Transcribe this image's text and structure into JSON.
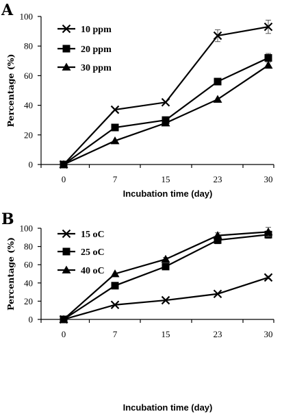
{
  "chart_data": [
    {
      "panel": "A",
      "type": "line",
      "categories": [
        "0",
        "7",
        "15",
        "23",
        "30"
      ],
      "xlabel": "Incubation time (day)",
      "ylabel": "Percentage (%)",
      "ylim": [
        0,
        100
      ],
      "yticks": [
        0,
        20,
        40,
        60,
        80,
        100
      ],
      "legend_position": "top-left",
      "series": [
        {
          "name": "10 ppm",
          "marker": "x",
          "values": [
            0,
            37,
            42,
            87,
            93
          ],
          "errors": [
            0,
            0,
            0,
            4,
            4.5
          ]
        },
        {
          "name": "20 ppm",
          "marker": "square",
          "values": [
            0,
            25,
            30,
            56,
            72
          ],
          "errors": [
            0,
            0,
            0,
            0,
            3
          ]
        },
        {
          "name": "30 ppm",
          "marker": "triangle",
          "values": [
            0,
            16,
            28,
            44,
            67
          ],
          "errors": [
            0,
            0,
            0,
            0,
            0
          ]
        }
      ]
    },
    {
      "panel": "B",
      "type": "line",
      "categories": [
        "0",
        "7",
        "15",
        "23",
        "30"
      ],
      "xlabel": "Incubation time (day)",
      "ylabel": "Percentage (%)",
      "ylim": [
        0,
        100
      ],
      "yticks": [
        0,
        20,
        40,
        60,
        80,
        100
      ],
      "legend_position": "top-left",
      "series": [
        {
          "name": "15 oC",
          "marker": "x",
          "values": [
            0,
            16,
            21,
            28,
            46
          ],
          "errors": [
            0,
            0,
            0,
            0,
            1.5
          ]
        },
        {
          "name": "25 oC",
          "marker": "square",
          "values": [
            0,
            37,
            58,
            87,
            93
          ],
          "errors": [
            0,
            0,
            0,
            4,
            4
          ]
        },
        {
          "name": "40 oC",
          "marker": "triangle",
          "values": [
            0,
            50,
            66,
            92,
            96
          ],
          "errors": [
            0,
            0,
            2,
            3,
            5
          ]
        }
      ]
    }
  ]
}
